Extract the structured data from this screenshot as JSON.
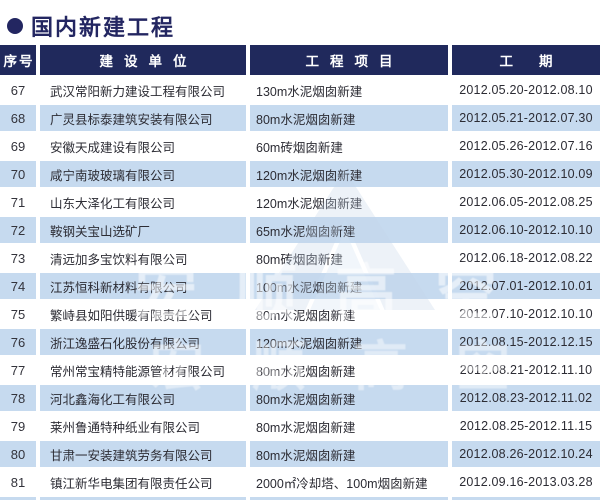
{
  "page_title": "国内新建工程",
  "colors": {
    "title": "#232661",
    "header_bg": "#20295C",
    "row_alt_bg": "#C6DAEF",
    "row_bg": "#FFFFFF",
    "body_text": "#2C2C34"
  },
  "watermark": {
    "text": "宏顺高空"
  },
  "table": {
    "columns": [
      "序号",
      "建设单位",
      "工程项目",
      "工期"
    ],
    "rows": [
      {
        "no": "67",
        "company": "武汉常阳新力建设工程有限公司",
        "project": "130m水泥烟囱新建",
        "period": "2012.05.20-2012.08.10"
      },
      {
        "no": "68",
        "company": "广灵县标泰建筑安装有限公司",
        "project": "80m水泥烟囱新建",
        "period": "2012.05.21-2012.07.30"
      },
      {
        "no": "69",
        "company": "安徽天成建设有限公司",
        "project": "60m砖烟囱新建",
        "period": "2012.05.26-2012.07.16"
      },
      {
        "no": "70",
        "company": "咸宁南玻玻璃有限公司",
        "project": "120m水泥烟囱新建",
        "period": "2012.05.30-2012.10.09"
      },
      {
        "no": "71",
        "company": "山东大泽化工有限公司",
        "project": "120m水泥烟囱新建",
        "period": "2012.06.05-2012.08.25"
      },
      {
        "no": "72",
        "company": "鞍钢关宝山选矿厂",
        "project": "65m水泥烟囱新建",
        "period": "2012.06.10-2012.10.10"
      },
      {
        "no": "73",
        "company": "清远加多宝饮料有限公司",
        "project": "80m砖烟囱新建",
        "period": "2012.06.18-2012.08.22"
      },
      {
        "no": "74",
        "company": "江苏恒科新材料有限公司",
        "project": "100m水泥烟囱新建",
        "period": "2012.07.01-2012.10.01"
      },
      {
        "no": "75",
        "company": "繁峙县如阳供暖有限责任公司",
        "project": "80m水泥烟囱新建",
        "period": "2012.07.10-2012.10.10"
      },
      {
        "no": "76",
        "company": "浙江逸盛石化股份有限公司",
        "project": "120m水泥烟囱新建",
        "period": "2012.08.15-2012.12.15"
      },
      {
        "no": "77",
        "company": "常州常宝精特能源管材有限公司",
        "project": "80m水泥烟囱新建",
        "period": "2012.08.21-2012.11.10"
      },
      {
        "no": "78",
        "company": "河北鑫海化工有限公司",
        "project": "80m水泥烟囱新建",
        "period": "2012.08.23-2012.11.02"
      },
      {
        "no": "79",
        "company": "莱州鲁通特种纸业有限公司",
        "project": "80m水泥烟囱新建",
        "period": "2012.08.25-2012.11.15"
      },
      {
        "no": "80",
        "company": "甘肃一安装建筑劳务有限公司",
        "project": "80m水泥烟囱新建",
        "period": "2012.08.26-2012.10.24"
      },
      {
        "no": "81",
        "company": "镇江新华电集团有限责任公司",
        "project": "2000㎡冷却塔、100m烟囱新建",
        "period": "2012.09.16-2013.03.28"
      }
    ]
  }
}
